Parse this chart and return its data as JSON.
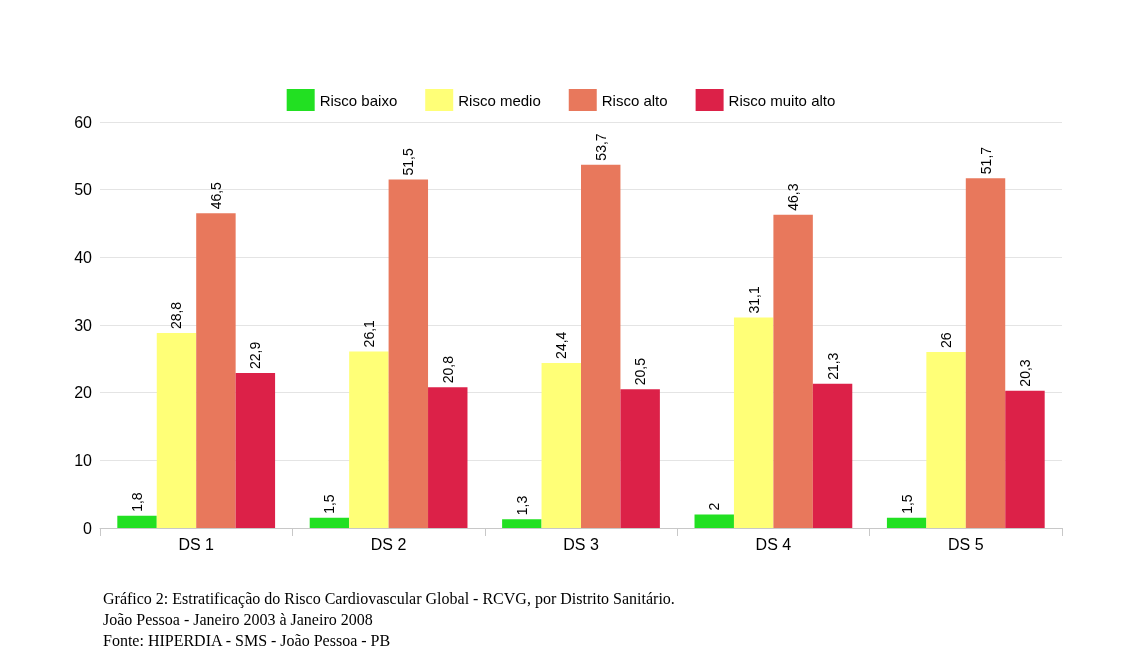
{
  "chart_data": {
    "type": "bar",
    "categories": [
      "DS 1",
      "DS 2",
      "DS 3",
      "DS 4",
      "DS 5"
    ],
    "series": [
      {
        "name": "Risco baixo",
        "color": "#22e022",
        "values": [
          1.8,
          1.5,
          1.3,
          2,
          1.5
        ],
        "value_labels": [
          "1,8",
          "1,5",
          "1,3",
          "2",
          "1,5"
        ]
      },
      {
        "name": "Risco medio",
        "color": "#ffff77",
        "values": [
          28.8,
          26.1,
          24.4,
          31.1,
          26
        ],
        "value_labels": [
          "28,8",
          "26,1",
          "24,4",
          "31,1",
          "26"
        ]
      },
      {
        "name": "Risco alto",
        "color": "#e8785c",
        "values": [
          46.5,
          51.5,
          53.7,
          46.3,
          51.7
        ],
        "value_labels": [
          "46,5",
          "51,5",
          "53,7",
          "46,3",
          "51,7"
        ]
      },
      {
        "name": "Risco muito alto",
        "color": "#dc2148",
        "values": [
          22.9,
          20.8,
          20.5,
          21.3,
          20.3
        ],
        "value_labels": [
          "22,9",
          "20,8",
          "20,5",
          "21,3",
          "20,3"
        ]
      }
    ],
    "ylim": [
      0,
      60
    ],
    "yticks": [
      0,
      10,
      20,
      30,
      40,
      50,
      60
    ],
    "grid": "y",
    "legend": "top",
    "annotations": [
      "Gráfico 2: Estratificação do Risco Cardiovascular Global - RCVG, por Distrito Sanitário.",
      "João Pessoa - Janeiro 2003 à Janeiro 2008",
      "Fonte: HIPERDIA - SMS - João Pessoa - PB"
    ]
  }
}
